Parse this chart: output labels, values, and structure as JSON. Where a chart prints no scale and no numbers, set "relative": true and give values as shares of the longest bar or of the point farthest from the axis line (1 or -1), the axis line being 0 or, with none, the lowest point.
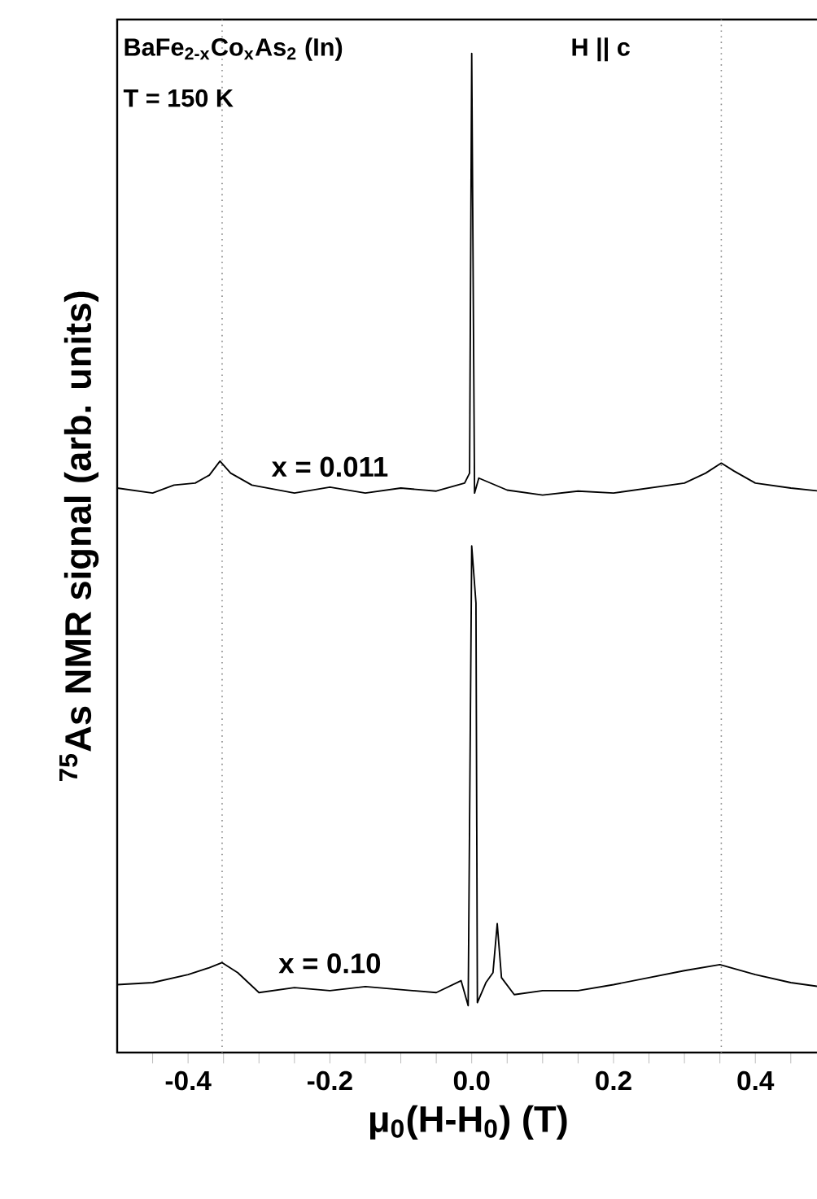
{
  "chart_data": {
    "type": "line",
    "relative": true,
    "xlabel": "μ$_{0}$(H-H$_{0}$) (T)",
    "ylabel": "$^{75}$As NMR signal (arb. units)",
    "annotations": [
      "BaFe$_{2-x}$Co$_{x}$As$_{2}$ (In)",
      "T = 150 K",
      "H || c"
    ],
    "xlim": [
      -0.5,
      0.49
    ],
    "xticks": [
      {
        "value": -0.45,
        "label": null
      },
      -0.4,
      {
        "value": -0.35,
        "label": null
      },
      {
        "value": -0.3,
        "label": null
      },
      -0.2,
      {
        "value": -0.25,
        "label": null
      },
      {
        "value": -0.15,
        "label": null
      },
      {
        "value": -0.1,
        "label": null
      },
      {
        "value": -0.05,
        "label": null
      },
      {
        "value": 0,
        "label": "0.0"
      },
      {
        "value": 0.05,
        "label": null
      },
      {
        "value": 0.1,
        "label": null
      },
      {
        "value": 0.15,
        "label": null
      },
      0.2,
      {
        "value": 0.25,
        "label": null
      },
      {
        "value": 0.3,
        "label": null
      },
      {
        "value": 0.35,
        "label": null
      },
      0.4,
      {
        "value": 0.45,
        "label": null
      }
    ],
    "marker": "none",
    "line_style": "solid",
    "ref_lines": [
      {
        "axis": "x",
        "value": -0.352,
        "color": "#888888",
        "line_style": "dotted"
      },
      {
        "axis": "x",
        "value": 0.352,
        "color": "#888888",
        "line_style": "dotted"
      }
    ],
    "series": [
      {
        "name": "x = 0.011",
        "color": "#000000",
        "x": [
          -0.5,
          -0.45,
          -0.42,
          -0.39,
          -0.37,
          -0.355,
          -0.34,
          -0.31,
          -0.25,
          -0.2,
          -0.15,
          -0.1,
          -0.05,
          -0.01,
          -0.003,
          0.0,
          0.004,
          0.01,
          0.05,
          0.1,
          0.15,
          0.2,
          0.25,
          0.3,
          0.33,
          0.352,
          0.37,
          0.4,
          0.45,
          0.49
        ],
        "values": [
          0.565,
          0.56,
          0.568,
          0.57,
          0.578,
          0.592,
          0.58,
          0.568,
          0.56,
          0.566,
          0.56,
          0.565,
          0.562,
          0.57,
          0.58,
          1.0,
          0.56,
          0.575,
          0.563,
          0.558,
          0.562,
          0.56,
          0.565,
          0.57,
          0.58,
          0.59,
          0.582,
          0.57,
          0.565,
          0.562
        ]
      },
      {
        "name": "x = 0.10",
        "color": "#000000",
        "x": [
          -0.5,
          -0.45,
          -0.4,
          -0.37,
          -0.352,
          -0.33,
          -0.3,
          -0.25,
          -0.2,
          -0.15,
          -0.1,
          -0.05,
          -0.015,
          -0.005,
          0.0,
          0.006,
          0.008,
          0.02,
          0.03,
          0.036,
          0.042,
          0.06,
          0.1,
          0.15,
          0.2,
          0.25,
          0.3,
          0.35,
          0.4,
          0.45,
          0.49
        ],
        "values": [
          0.068,
          0.07,
          0.078,
          0.085,
          0.09,
          0.08,
          0.06,
          0.065,
          0.062,
          0.066,
          0.063,
          0.06,
          0.072,
          0.047,
          0.507,
          0.45,
          0.05,
          0.07,
          0.08,
          0.129,
          0.075,
          0.058,
          0.062,
          0.062,
          0.068,
          0.075,
          0.082,
          0.088,
          0.078,
          0.07,
          0.066
        ]
      }
    ]
  }
}
